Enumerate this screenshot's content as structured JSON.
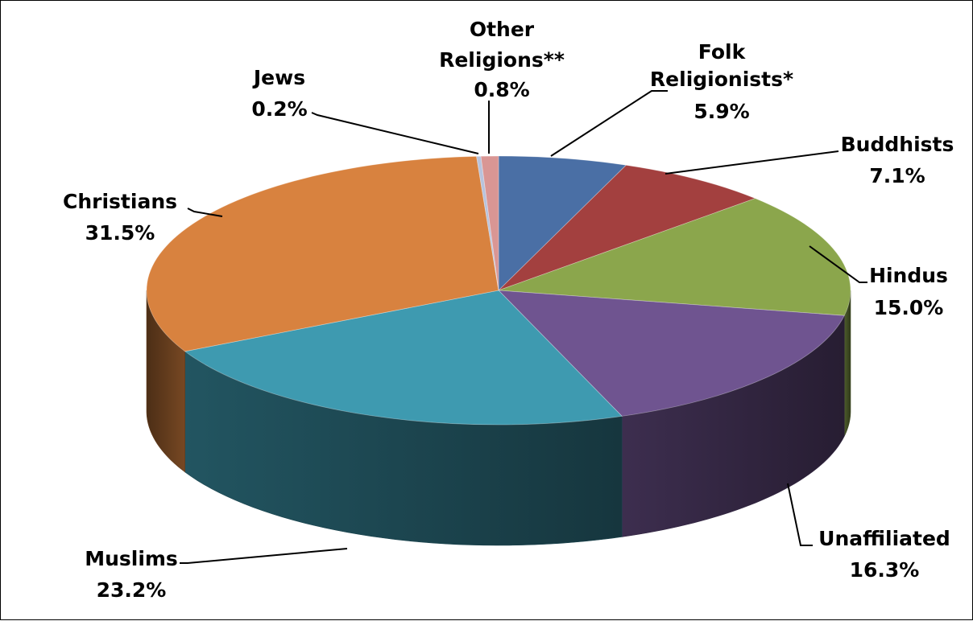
{
  "chart_data": {
    "type": "pie",
    "style": "3d-exploded-none",
    "title": "",
    "slices": [
      {
        "label_lines": [
          "Folk",
          "Religionists*"
        ],
        "value": 5.9,
        "value_text": "5.9%",
        "color": "#4A6FA5"
      },
      {
        "label_lines": [
          "Buddhists"
        ],
        "value": 7.1,
        "value_text": "7.1%",
        "color": "#A3403F"
      },
      {
        "label_lines": [
          "Hindus"
        ],
        "value": 15.0,
        "value_text": "15.0%",
        "color": "#8BA64C"
      },
      {
        "label_lines": [
          "Unaffiliated"
        ],
        "value": 16.3,
        "value_text": "16.3%",
        "color": "#6F5490"
      },
      {
        "label_lines": [
          "Muslims"
        ],
        "value": 23.2,
        "value_text": "23.2%",
        "color": "#3E9AB0"
      },
      {
        "label_lines": [
          "Christians"
        ],
        "value": 31.5,
        "value_text": "31.5%",
        "color": "#D8823F"
      },
      {
        "label_lines": [
          "Jews"
        ],
        "value": 0.2,
        "value_text": "0.2%",
        "color": "#B8C3DC"
      },
      {
        "label_lines": [
          "Other",
          "Religions**"
        ],
        "value": 0.8,
        "value_text": "0.8%",
        "color": "#D99694"
      }
    ]
  }
}
